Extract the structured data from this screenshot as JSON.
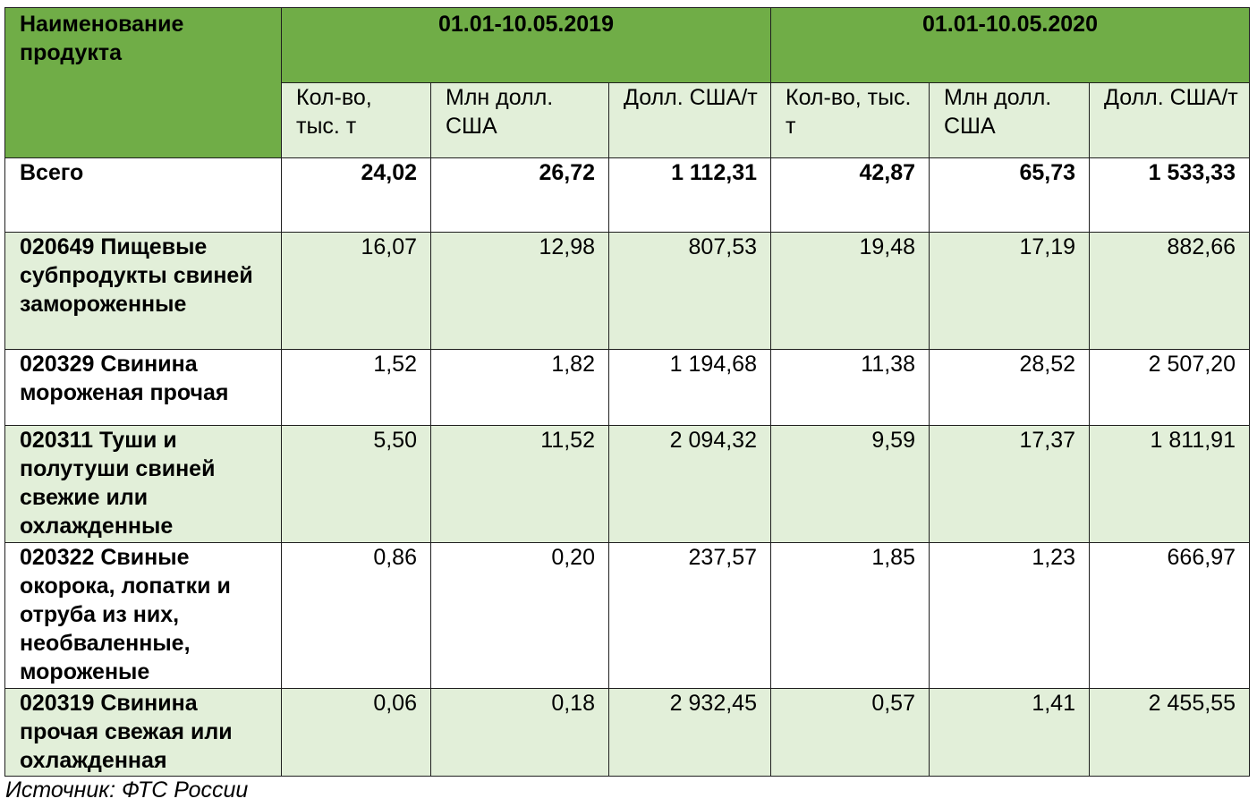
{
  "header": {
    "product_name": "Наименование продукта",
    "period_1": "01.01-10.05.2019",
    "period_2": "01.01-10.05.2020",
    "sub_columns": [
      "Кол-во, тыс. т",
      "Млн долл. США",
      "Долл. США/т",
      "Кол-во, тыс. т",
      "Млн долл. США",
      "Долл. США/т"
    ]
  },
  "rows": [
    {
      "name": "Всего",
      "values": [
        "24,02",
        "26,72",
        "1 112,31",
        "42,87",
        "65,73",
        "1 533,33"
      ]
    },
    {
      "name": "020649 Пищевые субпродукты свиней замороженные",
      "values": [
        "16,07",
        "12,98",
        "807,53",
        "19,48",
        "17,19",
        "882,66"
      ]
    },
    {
      "name": "020329 Свинина мороженая прочая",
      "values": [
        "1,52",
        "1,82",
        "1 194,68",
        "11,38",
        "28,52",
        "2 507,20"
      ]
    },
    {
      "name": "020311 Туши и полутуши свиней свежие или охлажденные",
      "values": [
        "5,50",
        "11,52",
        "2 094,32",
        "9,59",
        "17,37",
        "1 811,91"
      ]
    },
    {
      "name": "020322 Свиные окорока, лопатки и отруба из них, необваленные, мороженые",
      "values": [
        "0,86",
        "0,20",
        "237,57",
        "1,85",
        "1,23",
        "666,97"
      ]
    },
    {
      "name": "020319 Свинина прочая свежая или охлажденная",
      "values": [
        "0,06",
        "0,18",
        "2 932,45",
        "0,57",
        "1,41",
        "2 455,55"
      ]
    }
  ],
  "source": "Источник: ФТС России",
  "colors": {
    "header_green": "#70ad47",
    "light_green": "#e2efd9",
    "border": "#1f1f1f"
  }
}
